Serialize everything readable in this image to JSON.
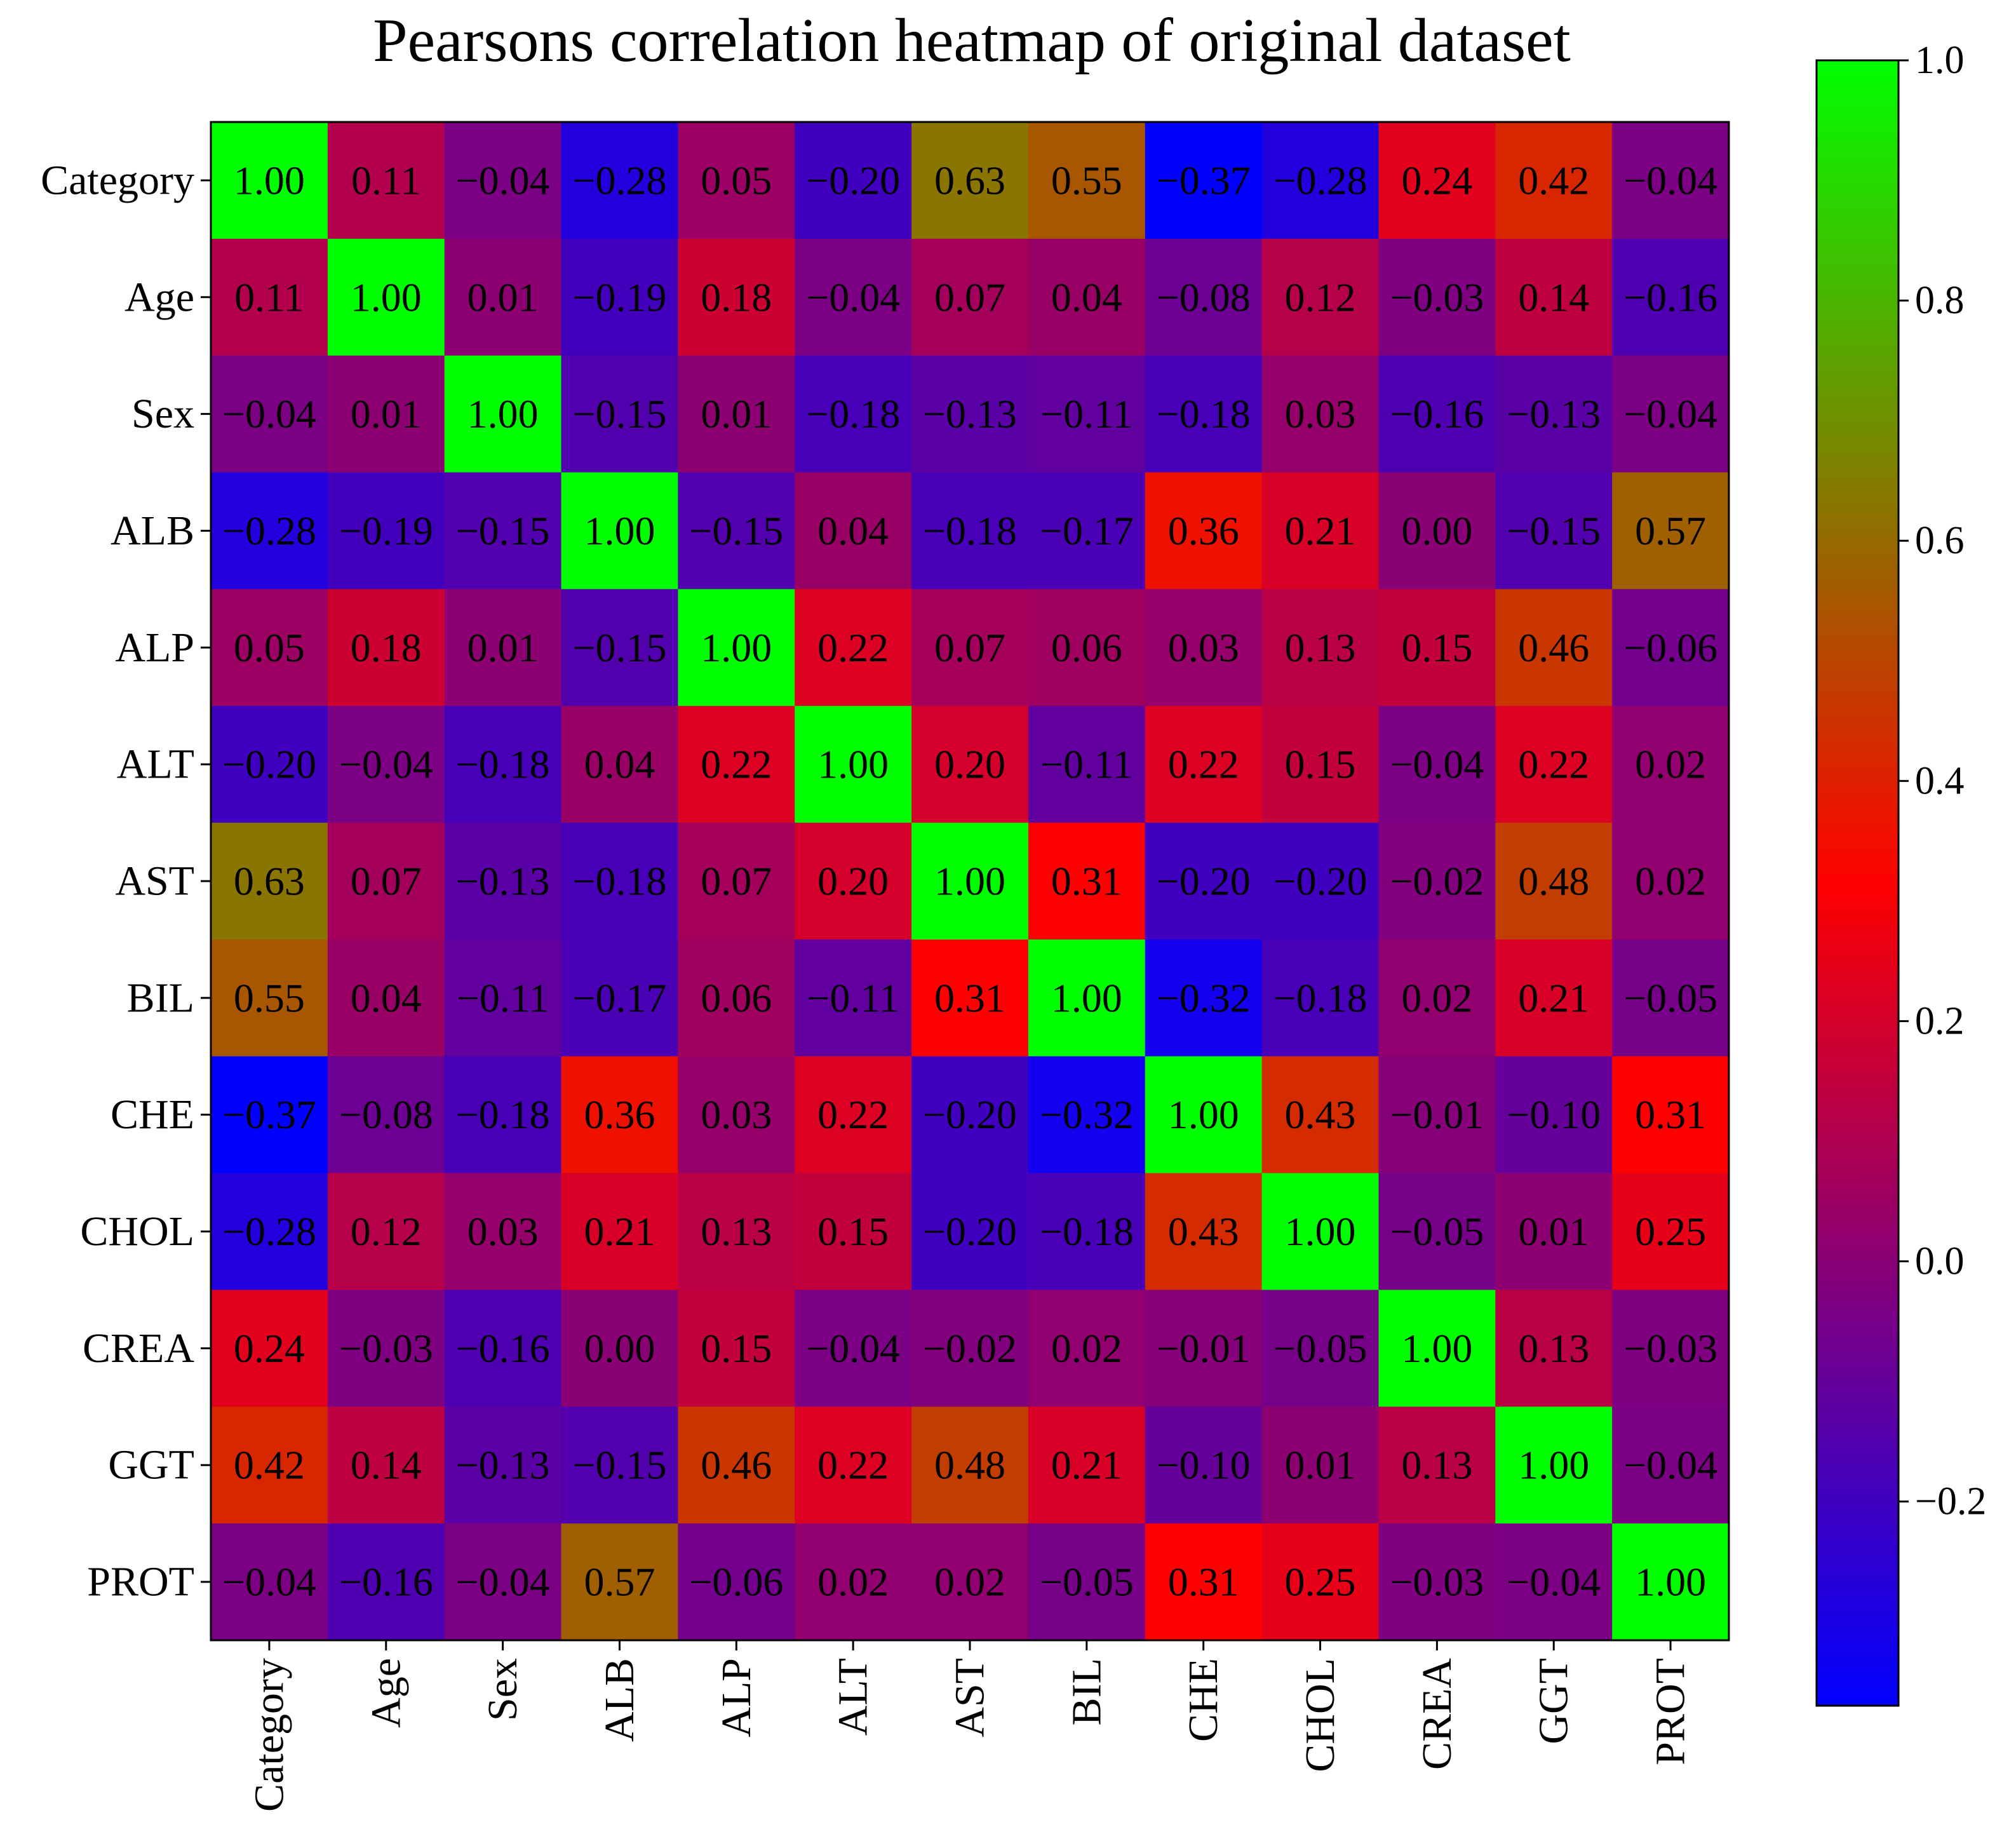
{
  "chart_data": {
    "type": "heatmap",
    "title": "Pearsons correlation heatmap of original dataset",
    "xlabel": "",
    "ylabel": "",
    "labels": [
      "Category",
      "Age",
      "Sex",
      "ALB",
      "ALP",
      "ALT",
      "AST",
      "BIL",
      "CHE",
      "CHOL",
      "CREA",
      "GGT",
      "PROT"
    ],
    "matrix": [
      [
        1.0,
        0.11,
        -0.04,
        -0.28,
        0.05,
        -0.2,
        0.63,
        0.55,
        -0.37,
        -0.28,
        0.24,
        0.42,
        -0.04
      ],
      [
        0.11,
        1.0,
        0.01,
        -0.19,
        0.18,
        -0.04,
        0.07,
        0.04,
        -0.08,
        0.12,
        -0.03,
        0.14,
        -0.16
      ],
      [
        -0.04,
        0.01,
        1.0,
        -0.15,
        0.01,
        -0.18,
        -0.13,
        -0.11,
        -0.18,
        0.03,
        -0.16,
        -0.13,
        -0.04
      ],
      [
        -0.28,
        -0.19,
        -0.15,
        1.0,
        -0.15,
        0.04,
        -0.18,
        -0.17,
        0.36,
        0.21,
        0.0,
        -0.15,
        0.57
      ],
      [
        0.05,
        0.18,
        0.01,
        -0.15,
        1.0,
        0.22,
        0.07,
        0.06,
        0.03,
        0.13,
        0.15,
        0.46,
        -0.06
      ],
      [
        -0.2,
        -0.04,
        -0.18,
        0.04,
        0.22,
        1.0,
        0.2,
        -0.11,
        0.22,
        0.15,
        -0.04,
        0.22,
        0.02
      ],
      [
        0.63,
        0.07,
        -0.13,
        -0.18,
        0.07,
        0.2,
        1.0,
        0.31,
        -0.2,
        -0.2,
        -0.02,
        0.48,
        0.02
      ],
      [
        0.55,
        0.04,
        -0.11,
        -0.17,
        0.06,
        -0.11,
        0.31,
        1.0,
        -0.32,
        -0.18,
        0.02,
        0.21,
        -0.05
      ],
      [
        -0.37,
        -0.08,
        -0.18,
        0.36,
        0.03,
        0.22,
        -0.2,
        -0.32,
        1.0,
        0.43,
        -0.01,
        -0.1,
        0.31
      ],
      [
        -0.28,
        0.12,
        0.03,
        0.21,
        0.13,
        0.15,
        -0.2,
        -0.18,
        0.43,
        1.0,
        -0.05,
        0.01,
        0.25
      ],
      [
        0.24,
        -0.03,
        -0.16,
        0.0,
        0.15,
        -0.04,
        -0.02,
        0.02,
        -0.01,
        -0.05,
        1.0,
        0.13,
        -0.03
      ],
      [
        0.42,
        0.14,
        -0.13,
        -0.15,
        0.46,
        0.22,
        0.48,
        0.21,
        -0.1,
        0.01,
        0.13,
        1.0,
        -0.04
      ],
      [
        -0.04,
        -0.16,
        -0.04,
        0.57,
        -0.06,
        0.02,
        0.02,
        -0.05,
        0.31,
        0.25,
        -0.03,
        -0.04,
        1.0
      ]
    ],
    "value_format": "2 decimals",
    "colorbar": {
      "range": [
        -0.37,
        1.0
      ],
      "ticks": [
        -0.2,
        0.0,
        0.2,
        0.4,
        0.6,
        0.8,
        1.0
      ],
      "tick_labels": [
        "−0.2",
        "0.0",
        "0.2",
        "0.4",
        "0.6",
        "0.8",
        "1.0"
      ]
    },
    "colormap": {
      "stops": [
        0.0,
        0.5,
        1.0
      ],
      "colors": [
        "#0000ff",
        "#ff0000",
        "#00ff00"
      ]
    },
    "x_tick_rotation": "vertical"
  }
}
